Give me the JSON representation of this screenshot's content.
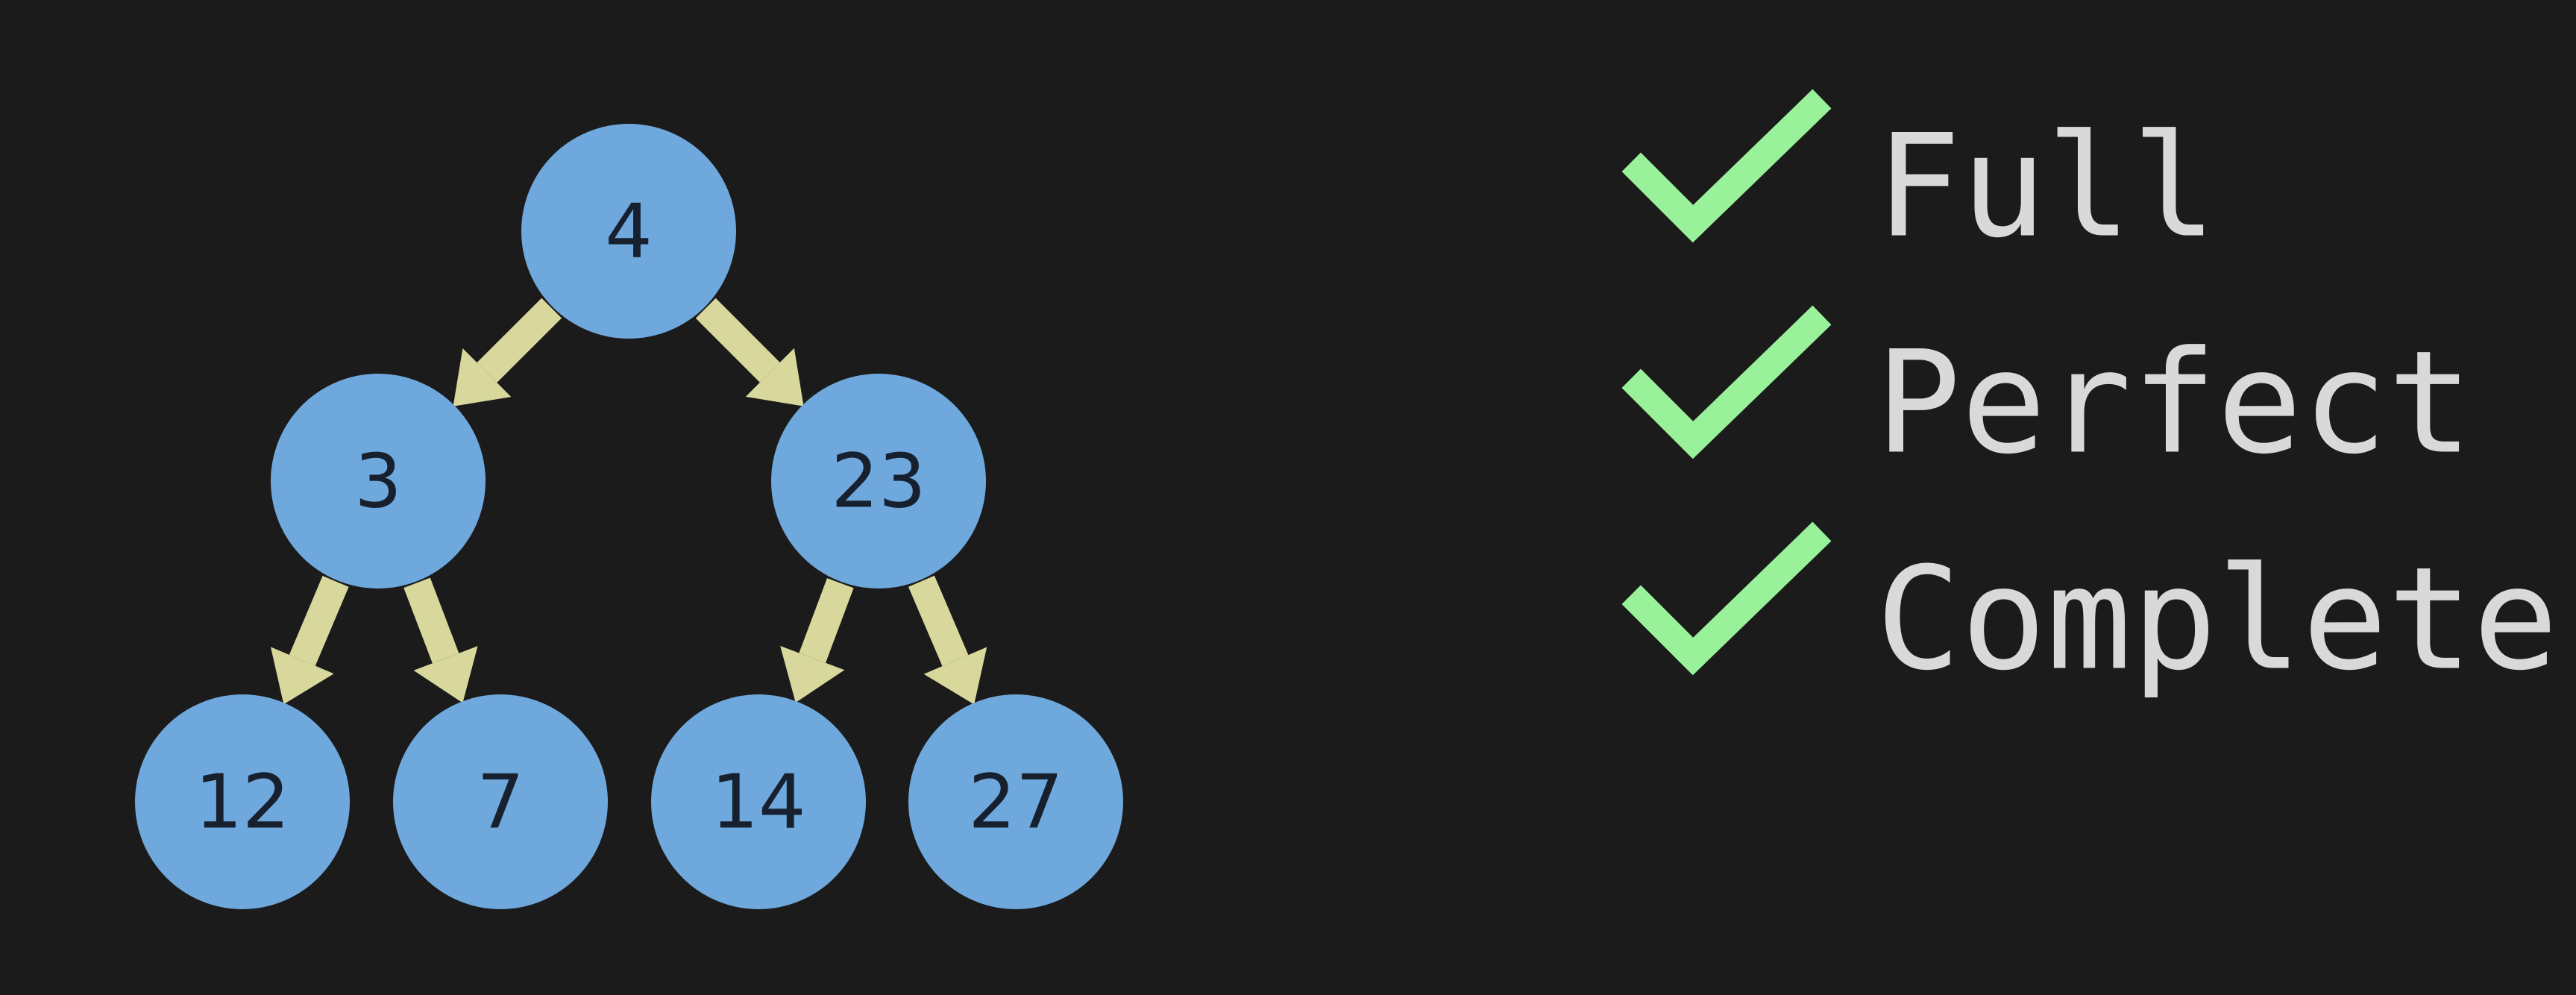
{
  "colors": {
    "background": "#1b1b1b",
    "node_fill": "#6fa8dc",
    "node_text": "#16202e",
    "arrow": "#d8d89c",
    "check": "#99f299",
    "check_text": "#d9d9d9"
  },
  "tree": {
    "nodes": [
      {
        "id": "n0",
        "label": "4"
      },
      {
        "id": "n1",
        "label": "3"
      },
      {
        "id": "n2",
        "label": "23"
      },
      {
        "id": "n3",
        "label": "12"
      },
      {
        "id": "n4",
        "label": "7"
      },
      {
        "id": "n5",
        "label": "14"
      },
      {
        "id": "n6",
        "label": "27"
      }
    ],
    "edges": [
      {
        "from": "n0",
        "to": "n1"
      },
      {
        "from": "n0",
        "to": "n2"
      },
      {
        "from": "n1",
        "to": "n3"
      },
      {
        "from": "n1",
        "to": "n4"
      },
      {
        "from": "n2",
        "to": "n5"
      },
      {
        "from": "n2",
        "to": "n6"
      }
    ]
  },
  "checklist": [
    {
      "label": "Full",
      "checked": true,
      "icon": "checkmark-icon"
    },
    {
      "label": "Perfect",
      "checked": true,
      "icon": "checkmark-icon"
    },
    {
      "label": "Complete",
      "checked": true,
      "icon": "checkmark-icon"
    }
  ]
}
